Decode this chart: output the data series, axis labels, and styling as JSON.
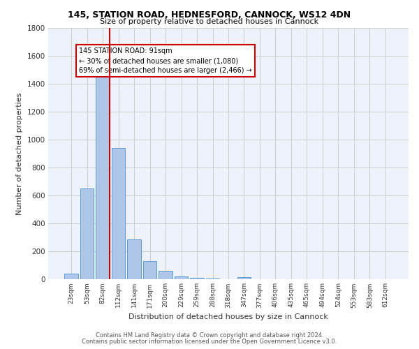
{
  "title1": "145, STATION ROAD, HEDNESFORD, CANNOCK, WS12 4DN",
  "title2": "Size of property relative to detached houses in Cannock",
  "xlabel": "Distribution of detached houses by size in Cannock",
  "ylabel": "Number of detached properties",
  "footer1": "Contains HM Land Registry data © Crown copyright and database right 2024.",
  "footer2": "Contains public sector information licensed under the Open Government Licence v3.0.",
  "bar_labels": [
    "23sqm",
    "53sqm",
    "82sqm",
    "112sqm",
    "141sqm",
    "171sqm",
    "200sqm",
    "229sqm",
    "259sqm",
    "288sqm",
    "318sqm",
    "347sqm",
    "377sqm",
    "406sqm",
    "435sqm",
    "465sqm",
    "494sqm",
    "524sqm",
    "553sqm",
    "583sqm",
    "612sqm"
  ],
  "bar_values": [
    38,
    650,
    1470,
    940,
    285,
    128,
    62,
    22,
    10,
    5,
    2,
    14,
    2,
    0,
    0,
    0,
    0,
    0,
    0,
    0,
    0
  ],
  "bar_color": "#aec6e8",
  "bar_edge_color": "#5b9bd5",
  "grid_color": "#cccccc",
  "bg_color": "#eef3fb",
  "vline_color": "#cc0000",
  "annotation_text": "145 STATION ROAD: 91sqm\n← 30% of detached houses are smaller (1,080)\n69% of semi-detached houses are larger (2,466) →",
  "annotation_box_color": "#ffffff",
  "annotation_box_edge": "#cc0000",
  "ylim": [
    0,
    1800
  ],
  "yticks": [
    0,
    200,
    400,
    600,
    800,
    1000,
    1200,
    1400,
    1600,
    1800
  ]
}
